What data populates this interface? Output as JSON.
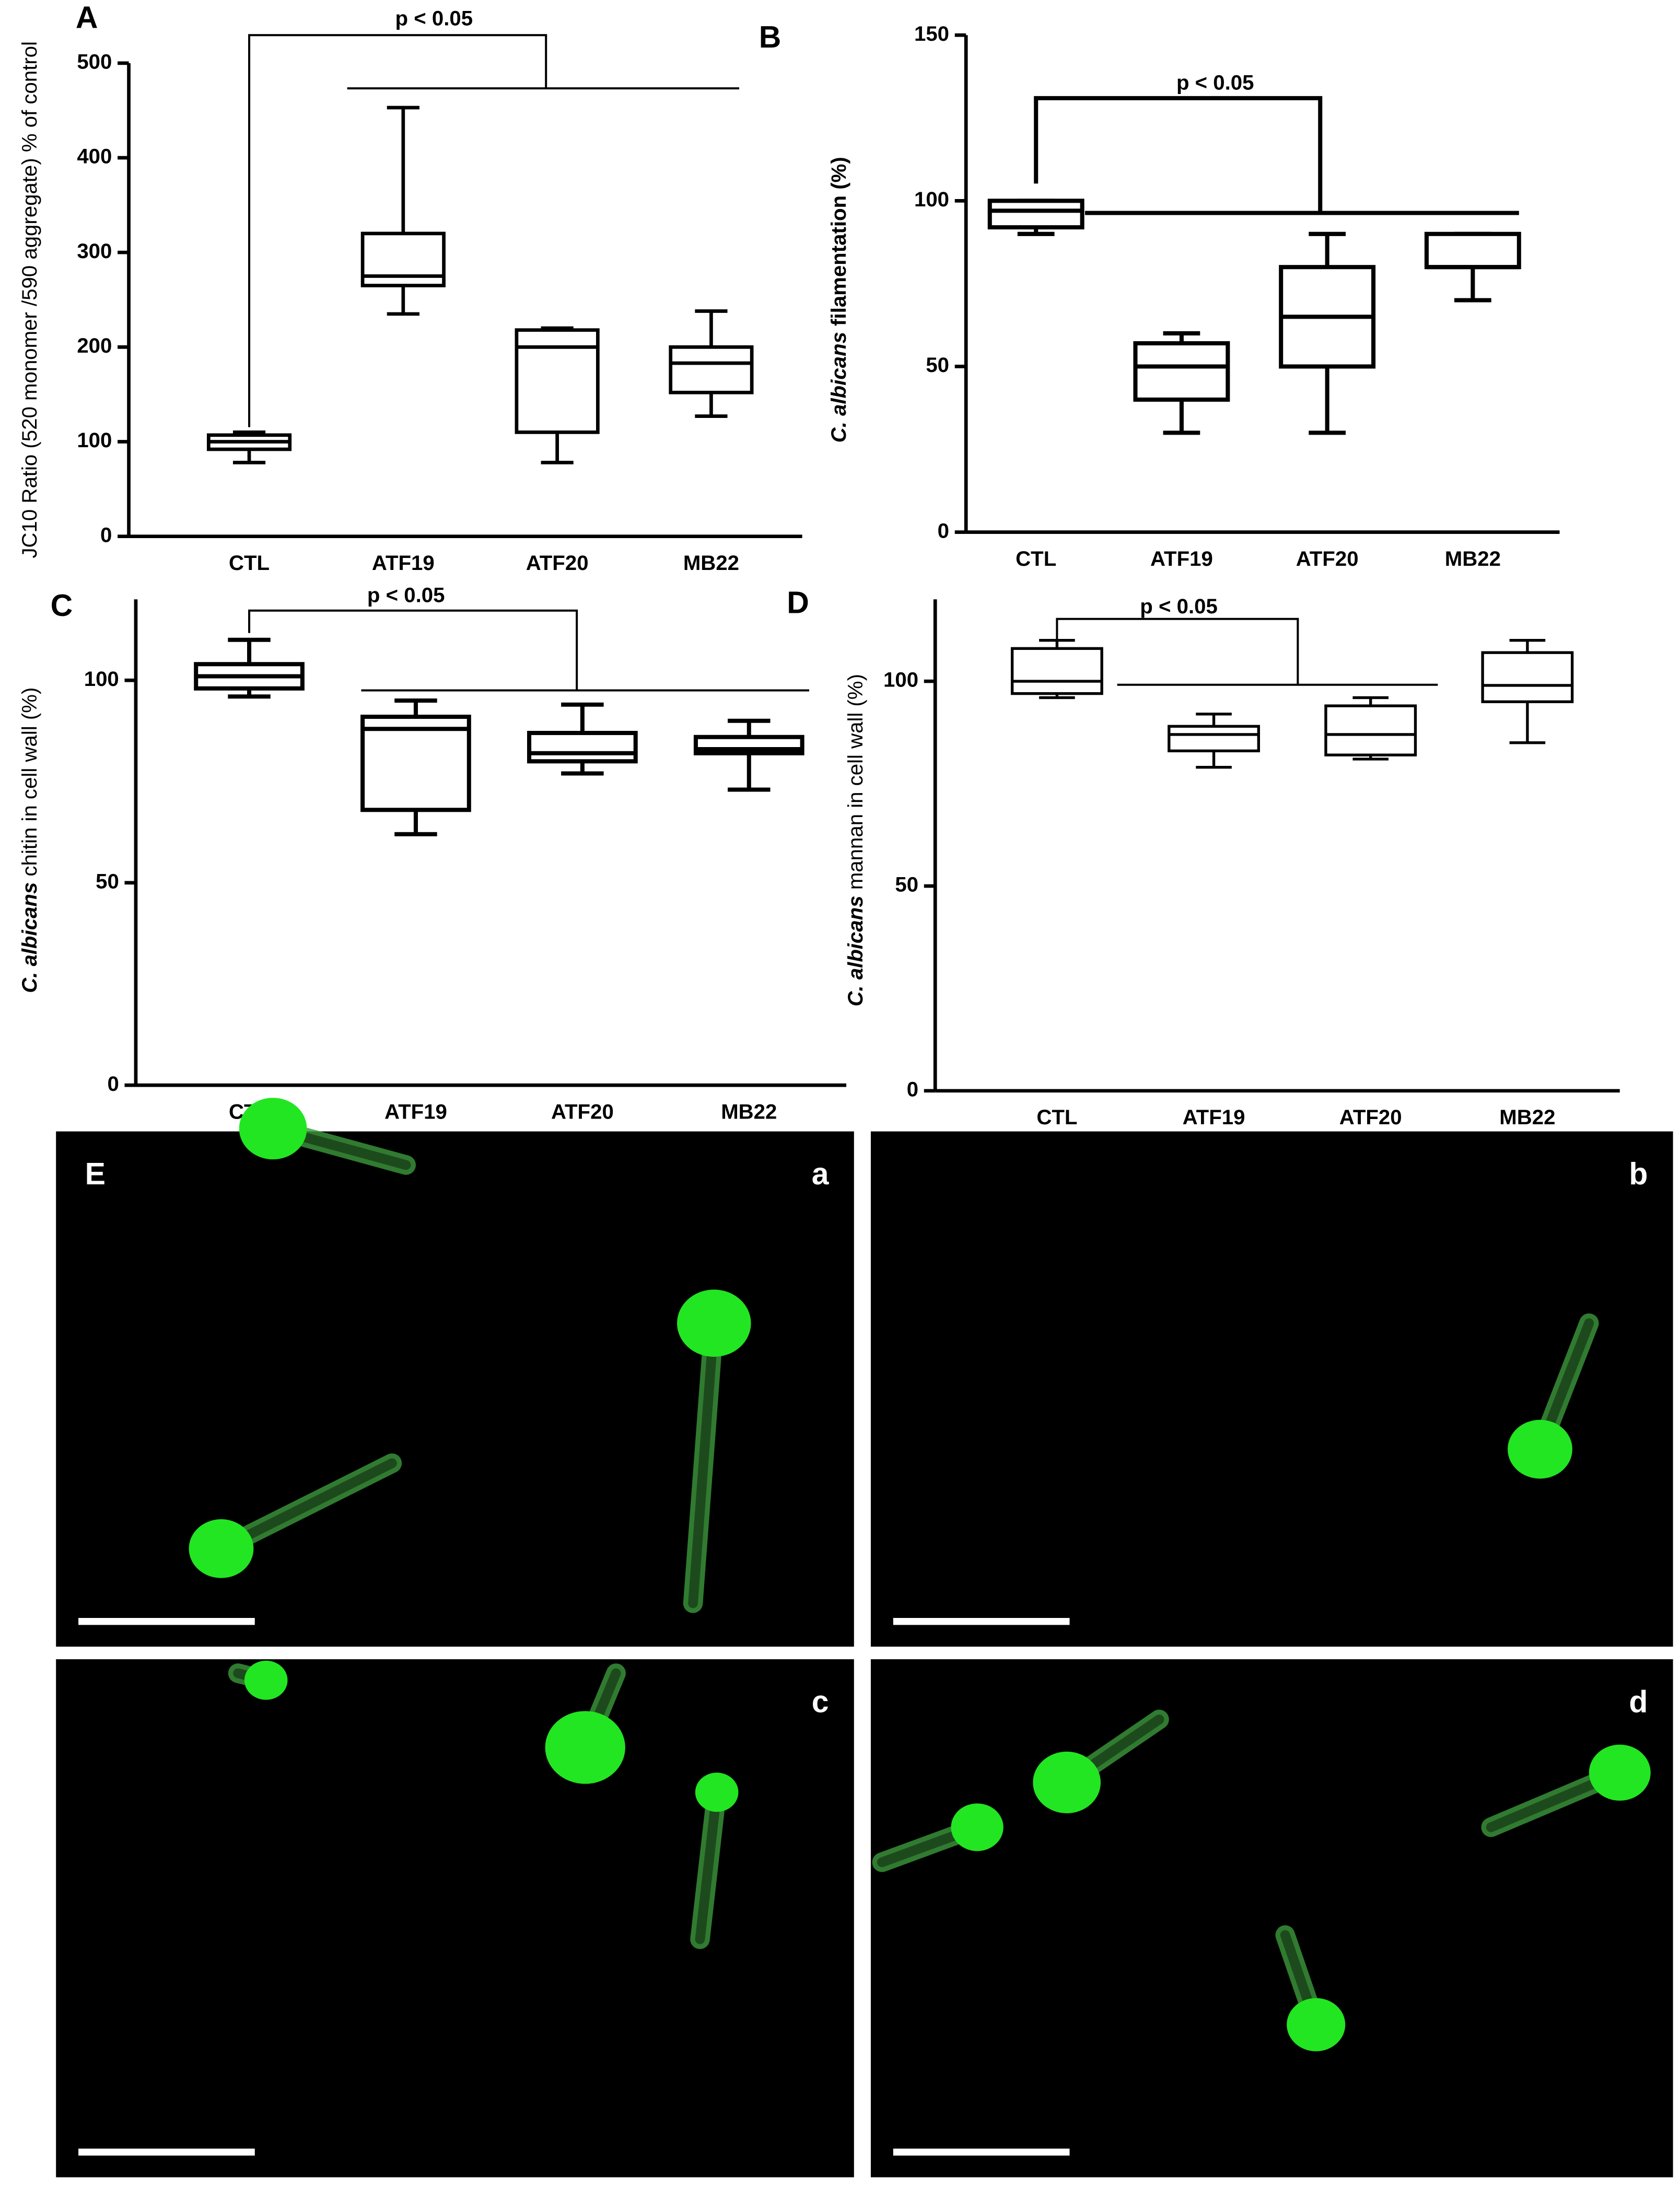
{
  "chart_data": [
    {
      "type": "box",
      "panel": "A",
      "annotation": "p < 0.05",
      "ylabel": "JC10 Ratio (520 monomer /590 aggregate) % of control",
      "categories": [
        "CTL",
        "ATF19",
        "ATF20",
        "MB22"
      ],
      "stats": {
        "min": [
          78,
          235,
          78,
          127
        ],
        "q1": [
          92,
          265,
          110,
          152
        ],
        "median": [
          100,
          275,
          200,
          183
        ],
        "q3": [
          107,
          320,
          218,
          200
        ],
        "max": [
          110,
          453,
          220,
          238
        ]
      },
      "ylim": [
        0,
        500
      ],
      "yticks": [
        0,
        100,
        200,
        300,
        400,
        500
      ]
    },
    {
      "type": "box",
      "panel": "B",
      "annotation": "p < 0.05",
      "species": "C. albicans",
      "ylabel": "filamentation (%)",
      "categories": [
        "CTL",
        "ATF19",
        "ATF20",
        "MB22"
      ],
      "stats": {
        "min": [
          90,
          30,
          30,
          70
        ],
        "q1": [
          92,
          40,
          50,
          80
        ],
        "median": [
          97,
          50,
          65,
          80
        ],
        "q3": [
          100,
          57,
          80,
          90
        ],
        "max": [
          100,
          60,
          90,
          90
        ]
      },
      "ylim": [
        0,
        150
      ],
      "yticks": [
        0,
        50,
        100,
        150
      ]
    },
    {
      "type": "box",
      "panel": "C",
      "annotation": "p < 0.05",
      "species": "C. albicans",
      "ylabel": "chitin in cell wall (%)",
      "categories": [
        "CTL",
        "ATF19",
        "ATF20",
        "MB22"
      ],
      "stats": {
        "min": [
          96,
          62,
          77,
          73
        ],
        "q1": [
          98,
          68,
          80,
          82
        ],
        "median": [
          101,
          88,
          82,
          83
        ],
        "q3": [
          104,
          91,
          87,
          86
        ],
        "max": [
          110,
          95,
          94,
          90
        ]
      },
      "ylim": [
        0,
        120
      ],
      "yticks": [
        0,
        50,
        100
      ]
    },
    {
      "type": "box",
      "panel": "D",
      "annotation": "p < 0.05",
      "species": "C. albicans",
      "ylabel": "mannan in cell wall (%)",
      "categories": [
        "CTL",
        "ATF19",
        "ATF20",
        "MB22"
      ],
      "stats": {
        "min": [
          96,
          79,
          81,
          85
        ],
        "q1": [
          97,
          83,
          82,
          95
        ],
        "median": [
          100,
          87,
          87,
          99
        ],
        "q3": [
          108,
          89,
          94,
          107
        ],
        "max": [
          110,
          92,
          96,
          110
        ]
      },
      "ylim": [
        0,
        120
      ],
      "yticks": [
        0,
        50,
        100
      ]
    }
  ],
  "micrographs": {
    "panel": "E",
    "images": [
      "a",
      "b",
      "c",
      "d"
    ]
  }
}
